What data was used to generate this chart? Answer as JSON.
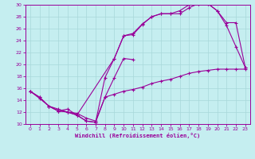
{
  "xlabel": "Windchill (Refroidissement éolien,°C)",
  "ylabel": "",
  "xlim": [
    -0.5,
    23.5
  ],
  "ylim": [
    10,
    30
  ],
  "xticks": [
    0,
    1,
    2,
    3,
    4,
    5,
    6,
    7,
    8,
    9,
    10,
    11,
    12,
    13,
    14,
    15,
    16,
    17,
    18,
    19,
    20,
    21,
    22,
    23
  ],
  "yticks": [
    10,
    12,
    14,
    16,
    18,
    20,
    22,
    24,
    26,
    28,
    30
  ],
  "bg_color": "#c5eef0",
  "line_color": "#990099",
  "grid_color": "#a8d8da",
  "lines": [
    {
      "x": [
        0,
        1,
        2,
        3,
        4,
        5,
        9,
        10,
        11,
        12,
        13,
        14,
        15,
        16,
        17,
        18,
        19,
        20,
        21,
        22,
        23
      ],
      "y": [
        15.5,
        14.5,
        13.0,
        12.2,
        12.0,
        11.5,
        21.0,
        24.8,
        25.2,
        26.8,
        28.0,
        28.5,
        28.5,
        28.5,
        29.5,
        30.2,
        30.2,
        29.0,
        26.5,
        23.0,
        19.5
      ]
    },
    {
      "x": [
        0,
        1,
        2,
        3,
        4,
        5,
        6,
        7,
        8,
        9,
        10,
        11,
        12,
        13,
        14,
        15,
        16,
        17,
        18,
        19,
        20,
        21,
        22,
        23
      ],
      "y": [
        15.5,
        14.5,
        13.0,
        12.2,
        12.5,
        11.5,
        10.5,
        10.3,
        17.8,
        21.0,
        24.8,
        25.0,
        26.7,
        28.0,
        28.5,
        28.5,
        29.0,
        30.0,
        30.2,
        30.2,
        29.0,
        27.0,
        27.0,
        19.5
      ]
    },
    {
      "x": [
        0,
        1,
        2,
        3,
        4,
        5,
        6,
        7,
        8,
        9,
        10,
        11,
        12,
        13,
        14,
        15,
        16,
        17,
        18,
        19,
        20,
        21,
        22,
        23
      ],
      "y": [
        15.5,
        14.3,
        13.0,
        12.5,
        12.0,
        11.8,
        11.0,
        10.5,
        14.5,
        15.0,
        15.5,
        15.8,
        16.2,
        16.8,
        17.2,
        17.5,
        18.0,
        18.5,
        18.8,
        19.0,
        19.2,
        19.2,
        19.2,
        19.2
      ]
    },
    {
      "x": [
        2,
        3,
        4,
        5,
        6,
        7,
        8,
        9,
        10,
        11
      ],
      "y": [
        13.0,
        12.2,
        12.0,
        11.5,
        10.5,
        10.3,
        14.5,
        17.8,
        21.0,
        20.8
      ]
    }
  ]
}
